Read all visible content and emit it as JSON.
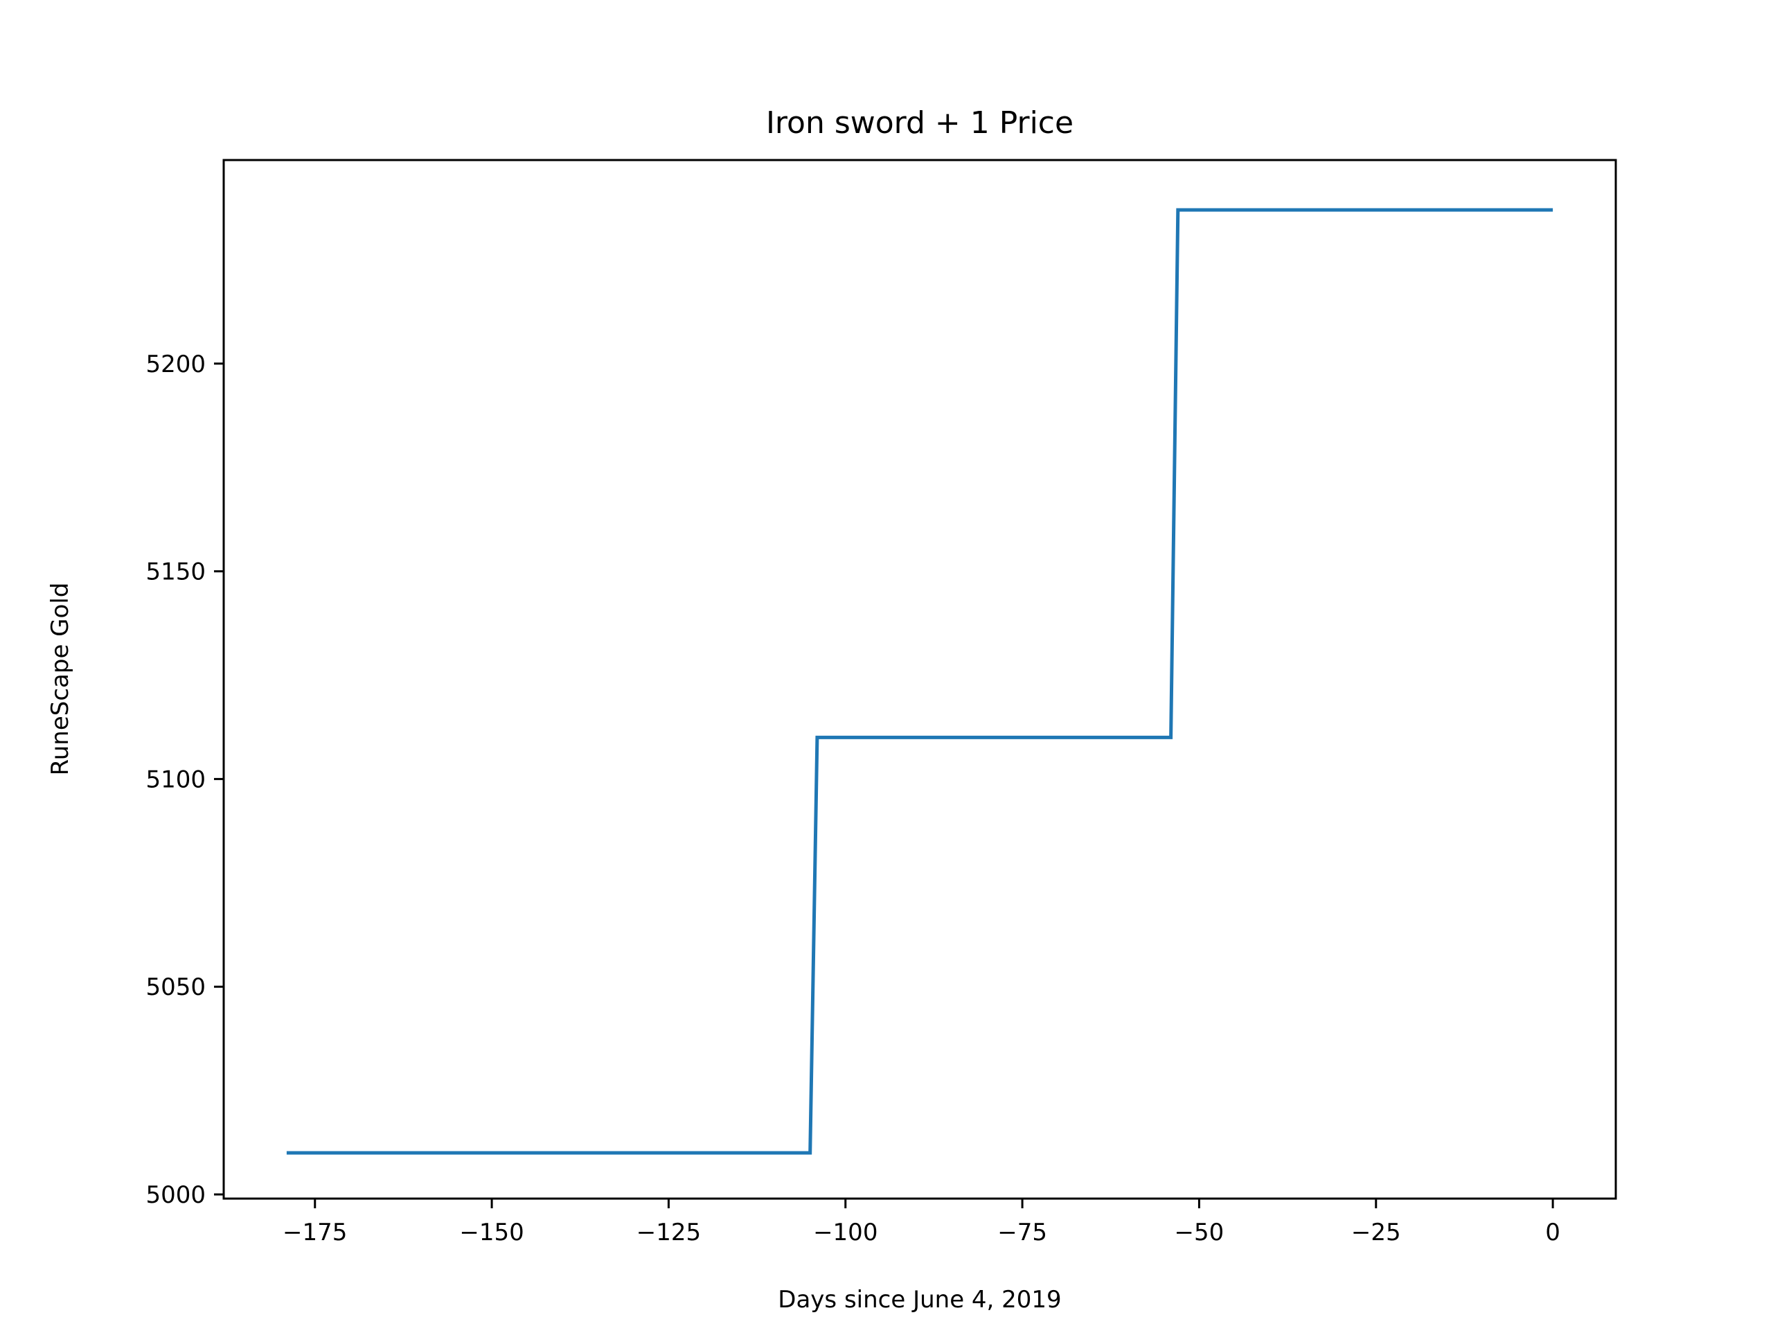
{
  "chart_data": {
    "type": "line",
    "title": "Iron sword + 1 Price",
    "xlabel": "Days since June 4, 2019",
    "ylabel": "RuneScape Gold",
    "xlim": [
      -187.9,
      8.9
    ],
    "ylim": [
      4999,
      5249
    ],
    "xticks": [
      -175,
      -150,
      -125,
      -100,
      -75,
      -50,
      -25,
      0
    ],
    "xtick_labels": [
      "−175",
      "−150",
      "−125",
      "−100",
      "−75",
      "−50",
      "−25",
      "0"
    ],
    "yticks": [
      5000,
      5050,
      5100,
      5150,
      5200
    ],
    "ytick_labels": [
      "5000",
      "5050",
      "5100",
      "5150",
      "5200"
    ],
    "grid": false,
    "legend": "none",
    "series": [
      {
        "color": "#1f77b4",
        "x": [
          -179,
          -105,
          -104,
          -54,
          -53,
          0
        ],
        "y": [
          5010,
          5010,
          5110,
          5110,
          5237,
          5237
        ]
      }
    ]
  }
}
